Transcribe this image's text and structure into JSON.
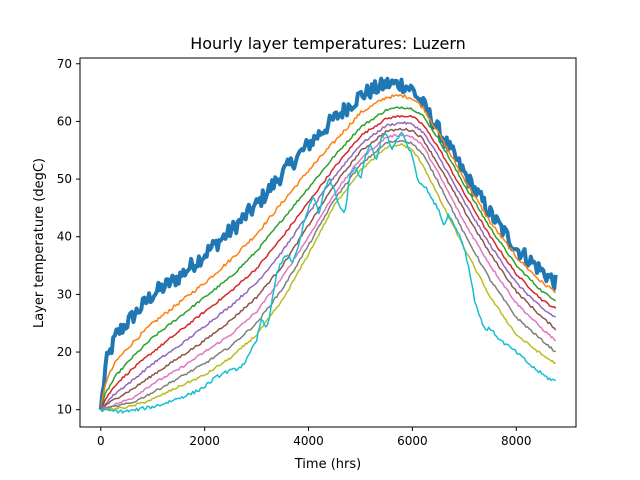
{
  "chart_data": {
    "type": "line",
    "title": "Hourly layer temperatures: Luzern",
    "xlabel": "Time (hrs)",
    "ylabel": "Layer temperature (degC)",
    "xlim": [
      -400,
      9150
    ],
    "ylim": [
      7,
      71
    ],
    "xticks": [
      0,
      2000,
      4000,
      6000,
      8000
    ],
    "yticks": [
      10,
      20,
      30,
      40,
      50,
      60,
      70
    ],
    "grid": false,
    "legend": "none",
    "series": [
      {
        "color": "#1f77b4",
        "noise": 1.4,
        "width": 4.0,
        "x": [
          0,
          100,
          300,
          600,
          1000,
          1500,
          2000,
          2500,
          3000,
          3500,
          4000,
          4500,
          5000,
          5500,
          5800,
          6000,
          6200,
          6500,
          7000,
          7500,
          8000,
          8500,
          8760
        ],
        "y": [
          10,
          18,
          23,
          26,
          30,
          33,
          37,
          41,
          45.5,
          51,
          56,
          60.5,
          64.5,
          66.5,
          66.5,
          65.5,
          63,
          58.5,
          51,
          44,
          38,
          34,
          32
        ]
      },
      {
        "color": "#ff7f0e",
        "noise": 0.3,
        "width": 1.5,
        "x": [
          0,
          100,
          300,
          600,
          1000,
          1500,
          2000,
          2500,
          3000,
          3500,
          4000,
          4500,
          5000,
          5500,
          5800,
          6000,
          6200,
          6500,
          7000,
          7500,
          8000,
          8500,
          8760
        ],
        "y": [
          10,
          15,
          18.5,
          21.5,
          25,
          28.5,
          32,
          36,
          40.5,
          46,
          51.5,
          56.5,
          61.5,
          64.2,
          64.5,
          64,
          62.5,
          58,
          50,
          42.5,
          36.5,
          32,
          30.5
        ]
      },
      {
        "color": "#2ca02c",
        "noise": 0.2,
        "width": 1.5,
        "x": [
          0,
          100,
          300,
          600,
          1000,
          1500,
          2000,
          2500,
          3000,
          3500,
          4000,
          4500,
          5000,
          5500,
          5800,
          6000,
          6200,
          6500,
          7000,
          7500,
          8000,
          8500,
          8760
        ],
        "y": [
          10,
          13,
          16,
          19,
          22.5,
          26,
          29.5,
          33,
          37.5,
          43,
          48.5,
          54,
          59,
          62,
          62.5,
          62.2,
          61,
          57,
          49,
          41.5,
          35,
          30.5,
          29
        ]
      },
      {
        "color": "#d62728",
        "noise": 0.2,
        "width": 1.5,
        "x": [
          0,
          100,
          300,
          600,
          1000,
          1500,
          2000,
          2500,
          3000,
          3500,
          4000,
          4500,
          5000,
          5500,
          5800,
          6000,
          6200,
          6500,
          7000,
          7500,
          8000,
          8500,
          8760
        ],
        "y": [
          10,
          12,
          14.5,
          17,
          20,
          23.5,
          27,
          30.5,
          34.5,
          40,
          46,
          52,
          57.5,
          60.5,
          61,
          60.8,
          59.5,
          55.5,
          47.5,
          40,
          33.5,
          29,
          27.5
        ]
      },
      {
        "color": "#9467bd",
        "noise": 0.2,
        "width": 1.5,
        "x": [
          0,
          100,
          300,
          600,
          1000,
          1500,
          2000,
          2500,
          3000,
          3500,
          4000,
          4500,
          5000,
          5500,
          5800,
          6000,
          6200,
          6500,
          7000,
          7500,
          8000,
          8500,
          8760
        ],
        "y": [
          10,
          11.2,
          13,
          15,
          18,
          21,
          24.5,
          28,
          32,
          37.5,
          44,
          50.5,
          56,
          59.3,
          59.8,
          59.5,
          58.2,
          54,
          46,
          38.5,
          32,
          27.5,
          26
        ]
      },
      {
        "color": "#8c564b",
        "noise": 0.2,
        "width": 1.5,
        "x": [
          0,
          100,
          300,
          600,
          1000,
          1500,
          2000,
          2500,
          3000,
          3500,
          4000,
          4500,
          5000,
          5500,
          5800,
          6000,
          6200,
          6500,
          7000,
          7500,
          8000,
          8500,
          8760
        ],
        "y": [
          10,
          10.8,
          12,
          13.5,
          16,
          19,
          22,
          25.5,
          29.5,
          35,
          42,
          49,
          54.8,
          58.3,
          58.7,
          58.4,
          57,
          52.5,
          44.5,
          37,
          30.5,
          26,
          24
        ]
      },
      {
        "color": "#e377c2",
        "noise": 0.2,
        "width": 1.5,
        "x": [
          0,
          100,
          300,
          600,
          1000,
          1500,
          2000,
          2500,
          3000,
          3500,
          4000,
          4500,
          5000,
          5500,
          5800,
          6000,
          6200,
          6500,
          7000,
          7500,
          8000,
          8500,
          8760
        ],
        "y": [
          10,
          10.4,
          11,
          12,
          14.5,
          17,
          20,
          23,
          27,
          33,
          40,
          47.5,
          53.5,
          57.3,
          57.7,
          57.3,
          55.8,
          51,
          42.5,
          35,
          28.5,
          24,
          22
        ]
      },
      {
        "color": "#7f7f7f",
        "noise": 0.2,
        "width": 1.5,
        "x": [
          0,
          100,
          300,
          600,
          1000,
          1500,
          2000,
          2500,
          3000,
          3500,
          4000,
          4500,
          5000,
          5500,
          5800,
          6000,
          6200,
          6500,
          7000,
          7500,
          8000,
          8500,
          8760
        ],
        "y": [
          10,
          10.2,
          10.6,
          11.2,
          13,
          15.5,
          18,
          21,
          25,
          31,
          38.5,
          46.5,
          52.5,
          56.3,
          56.7,
          56.2,
          54.3,
          49.5,
          40.5,
          32.5,
          26,
          22,
          20
        ]
      },
      {
        "color": "#bcbd22",
        "noise": 0.2,
        "width": 1.5,
        "x": [
          0,
          100,
          300,
          600,
          1000,
          1500,
          2000,
          2500,
          3000,
          3500,
          4000,
          4500,
          5000,
          5500,
          5800,
          6000,
          6200,
          6500,
          7000,
          7500,
          8000,
          8500,
          8760
        ],
        "y": [
          10,
          10,
          10.2,
          10.6,
          11.8,
          14,
          16,
          19,
          23,
          29,
          37,
          45.5,
          51.5,
          55.5,
          56,
          55,
          52.5,
          47,
          38,
          29.5,
          23,
          19.5,
          18
        ]
      },
      {
        "color": "#17becf",
        "noise": 0.3,
        "width": 1.5,
        "x": [
          0,
          200,
          400,
          600,
          800,
          1000,
          1200,
          1500,
          1800,
          2000,
          2200,
          2400,
          2600,
          2700,
          2800,
          3000,
          3100,
          3200,
          3300,
          3400,
          3500,
          3600,
          3700,
          3800,
          3900,
          4000,
          4100,
          4200,
          4300,
          4400,
          4500,
          4600,
          4700,
          4800,
          4900,
          5000,
          5100,
          5200,
          5300,
          5400,
          5500,
          5600,
          5700,
          5800,
          5900,
          6000,
          6100,
          6200,
          6300,
          6400,
          6500,
          6600,
          6700,
          6800,
          6900,
          7000,
          7100,
          7200,
          7300,
          7400,
          7500,
          7700,
          8000,
          8300,
          8600,
          8760
        ],
        "y": [
          10,
          9.8,
          9.7,
          9.8,
          10.2,
          10.5,
          11,
          12,
          13,
          14,
          15.5,
          16.5,
          17,
          17.5,
          18.5,
          22,
          26,
          24,
          29,
          34,
          36,
          37,
          35.5,
          38,
          42,
          45,
          47,
          44,
          48,
          50,
          48,
          45,
          44,
          51,
          52,
          50,
          54,
          56,
          53,
          57,
          58,
          55,
          57,
          58,
          56,
          54,
          50,
          49,
          48,
          46,
          45,
          42,
          44,
          42,
          40.5,
          38,
          34,
          29,
          26,
          24,
          24,
          22,
          20,
          17.5,
          15.5,
          15
        ]
      }
    ]
  }
}
